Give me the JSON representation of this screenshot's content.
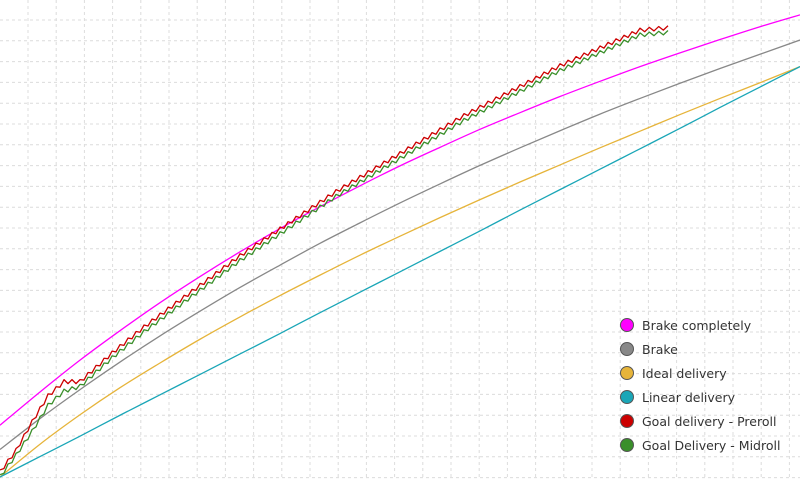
{
  "chart_data": {
    "type": "line",
    "title": "",
    "xlabel": "",
    "ylabel": "",
    "x_range": [
      0,
      100
    ],
    "y_range": [
      0,
      100
    ],
    "grid": true,
    "legend_position": "bottom-right",
    "x": [
      0,
      5,
      10,
      15,
      20,
      25,
      30,
      35,
      40,
      45,
      50,
      55,
      60,
      65,
      70,
      75,
      80,
      85,
      90,
      95,
      100
    ],
    "series": [
      {
        "name": "Brake completely",
        "color": "#ff00ff",
        "style": "smooth",
        "values": [
          10.9,
          17.9,
          24.6,
          30.8,
          36.7,
          42.2,
          47.4,
          52.3,
          56.9,
          61.3,
          65.5,
          69.4,
          73.2,
          76.7,
          80.1,
          83.3,
          86.4,
          89.3,
          92.1,
          94.8,
          97.3
        ]
      },
      {
        "name": "Brake",
        "color": "#888888",
        "style": "smooth",
        "values": [
          5.8,
          12.3,
          18.4,
          24.2,
          29.7,
          34.9,
          39.9,
          44.6,
          49.2,
          53.5,
          57.7,
          61.7,
          65.6,
          69.3,
          72.9,
          76.4,
          79.7,
          82.9,
          86.0,
          89.0,
          92.0
        ]
      },
      {
        "name": "Ideal delivery",
        "color": "#e6b43a",
        "style": "smooth",
        "values": [
          0.0,
          6.9,
          13.1,
          18.8,
          24.0,
          29.0,
          33.7,
          38.2,
          42.5,
          46.7,
          50.7,
          54.6,
          58.4,
          62.1,
          65.7,
          69.3,
          72.8,
          76.3,
          79.7,
          83.0,
          86.4
        ]
      },
      {
        "name": "Linear delivery",
        "color": "#1aa6b7",
        "style": "smooth",
        "values": [
          0.0,
          4.3,
          8.6,
          13.0,
          17.3,
          21.6,
          25.9,
          30.2,
          34.6,
          38.9,
          43.2,
          47.5,
          51.8,
          56.2,
          60.5,
          64.8,
          69.1,
          73.4,
          77.8,
          82.1,
          86.4
        ]
      },
      {
        "name": "Goal delivery - Preroll",
        "color": "#cc0000",
        "style": "jagged",
        "x": [
          0,
          2,
          4,
          6,
          8,
          10,
          14,
          18,
          22,
          26,
          30,
          34,
          38,
          42,
          46,
          50,
          54,
          58,
          62,
          66,
          70,
          74,
          78,
          80,
          83.5
        ],
        "values": [
          1.5,
          6.0,
          12.0,
          17.5,
          20.5,
          20.5,
          26.5,
          32.0,
          37.0,
          42.0,
          47.0,
          51.5,
          56.0,
          60.5,
          64.5,
          68.5,
          72.5,
          76.5,
          80.0,
          83.5,
          87.0,
          90.0,
          93.0,
          94.5,
          95.0
        ]
      },
      {
        "name": "Goal Delivery - Midroll",
        "color": "#3a8f2a",
        "style": "jagged",
        "x": [
          0,
          2,
          4,
          6,
          8,
          10,
          14,
          18,
          22,
          26,
          30,
          34,
          38,
          42,
          46,
          50,
          54,
          58,
          62,
          66,
          70,
          74,
          78,
          80,
          83.5
        ],
        "values": [
          0.5,
          5.0,
          10.0,
          15.5,
          18.5,
          19.5,
          25.5,
          31.0,
          36.0,
          41.0,
          46.0,
          50.5,
          55.0,
          59.5,
          63.5,
          67.5,
          71.5,
          75.5,
          79.0,
          82.5,
          86.0,
          89.0,
          92.0,
          93.5,
          94.0
        ]
      }
    ]
  }
}
